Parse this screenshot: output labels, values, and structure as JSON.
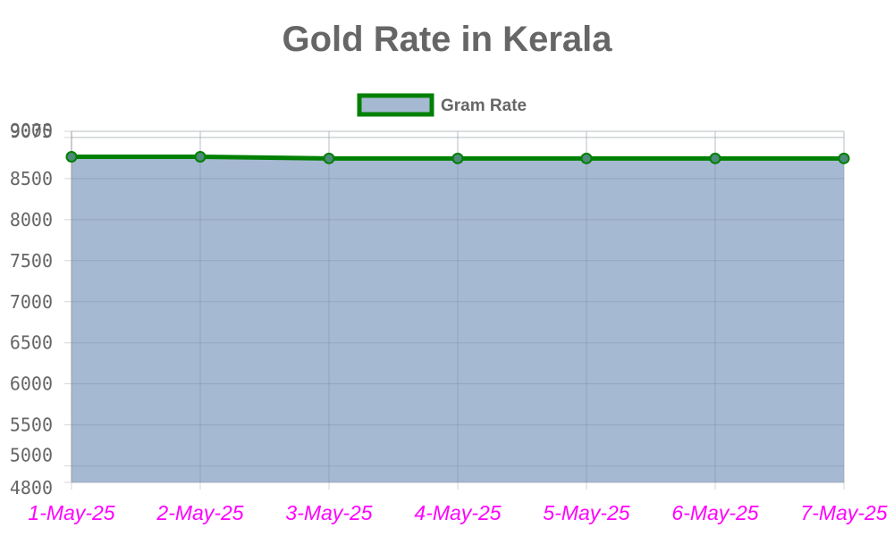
{
  "chart_data": {
    "type": "area",
    "title": "Gold Rate in Kerala",
    "categories": [
      "1-May-25",
      "2-May-25",
      "3-May-25",
      "4-May-25",
      "5-May-25",
      "6-May-25",
      "7-May-25"
    ],
    "series": [
      {
        "name": "Gram Rate",
        "values": [
          8765,
          8765,
          8745,
          8745,
          8745,
          8745,
          8745
        ]
      }
    ],
    "ylim": [
      4800,
      9075
    ],
    "yticks": [
      4800,
      5000,
      5500,
      6000,
      6500,
      7000,
      7500,
      8000,
      8500,
      9000,
      9075
    ],
    "grid": true,
    "legend_position": "top-center",
    "colors": {
      "line": "#008000",
      "fill": "#a6b9d2",
      "point_fill": "#4d8a7a",
      "grid": "#d6d6d6",
      "title": "#666666",
      "ytick_label": "#666666",
      "xtick_label": "#ff00ff"
    }
  }
}
